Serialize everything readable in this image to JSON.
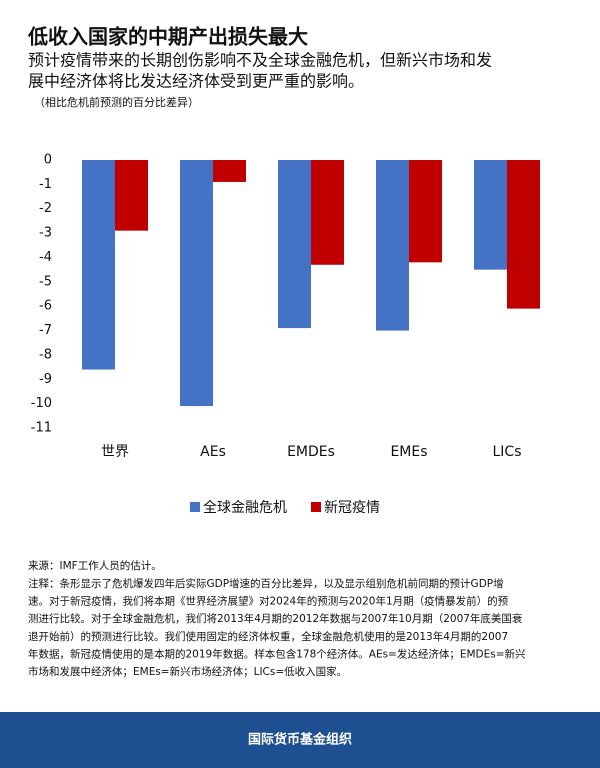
{
  "chart_data": {
    "type": "bar",
    "title": "低收入国家的中期产出损失最大",
    "subtitle": [
      "预计疫情带来的长期创伤影响不及全球金融危机，但新兴市场和发",
      "展中经济体将比发达经济体受到更严重的影响。"
    ],
    "unit_note": "（相比危机前预测的百分比差异）",
    "categories": [
      "世界",
      "AEs",
      "EMDEs",
      "EMEs",
      "LICs"
    ],
    "series": [
      {
        "name": "全球金融危机",
        "color": "#4472c4",
        "values": [
          -8.6,
          -10.1,
          -6.9,
          -7.0,
          -4.5
        ]
      },
      {
        "name": "新冠疫情",
        "color": "#c00000",
        "values": [
          -2.9,
          -0.9,
          -4.3,
          -4.2,
          -6.1
        ]
      }
    ],
    "ylim": [
      0,
      -11
    ],
    "yticks": [
      0,
      -1,
      -2,
      -3,
      -4,
      -5,
      -6,
      -7,
      -8,
      -9,
      -10,
      -11
    ],
    "grid": false,
    "legend_position": "bottom",
    "source": "来源：IMF工作人员的估计。",
    "notes": [
      "注释：条形显示了危机爆发四年后实际GDP增速的百分比差异，以及显示组别危机前同期的预计GDP增",
      "速。对于新冠疫情，我们将本期《世界经济展望》对2024年的预测与2020年1月期（疫情暴发前）的预",
      "测进行比较。对于全球金融危机，我们将2013年4月期的2012年数据与2007年10月期（2007年底美国衰",
      "退开始前）的预测进行比较。我们使用固定的经济体权重，全球金融危机使用的是2013年4月期的2007",
      "年数据，新冠疫情使用的是本期的2019年数据。样本包含178个经济体。AEs=发达经济体；EMDEs=新兴",
      "市场和发展中经济体；EMEs=新兴市场经济体；LICs=低收入国家。"
    ],
    "footer": "国际货币基金组织"
  }
}
